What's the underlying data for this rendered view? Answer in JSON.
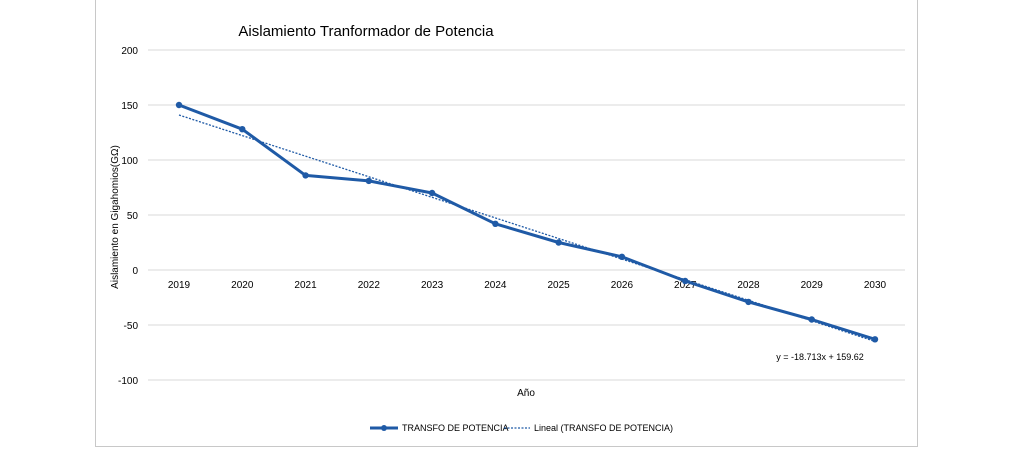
{
  "chart_data": {
    "type": "line",
    "title": "Aislamiento Tranformador de Potencia",
    "xlabel": "Año",
    "ylabel": "Aislamiento en Gigahomios(GΩ)",
    "categories": [
      "2019",
      "2020",
      "2021",
      "2022",
      "2023",
      "2024",
      "2025",
      "2026",
      "2027",
      "2028",
      "2029",
      "2030"
    ],
    "series": [
      {
        "name": "TRANSFO DE POTENCIA",
        "values": [
          150,
          128,
          86,
          81,
          70,
          42,
          25,
          12,
          -10,
          -29,
          -45,
          -63
        ],
        "color": "#1f5aa6"
      }
    ],
    "trendline": {
      "name": "Lineal (TRANSFO DE POTENCIA)",
      "slope": -18.713,
      "intercept": 159.62,
      "equation": "y = -18.713x + 159.62",
      "color": "#1f5aa6"
    },
    "yticks": [
      "200",
      "150",
      "100",
      "50",
      "0",
      "-50",
      "-100"
    ],
    "ylim": [
      -100,
      200
    ],
    "grid": true,
    "legend": "bottom"
  }
}
